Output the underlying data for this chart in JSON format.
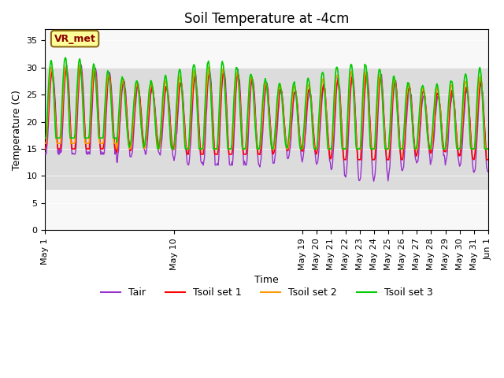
{
  "title": "Soil Temperature at -4cm",
  "xlabel": "Time",
  "ylabel": "Temperature (C)",
  "ylim": [
    0,
    37
  ],
  "yticks": [
    0,
    5,
    10,
    15,
    20,
    25,
    30,
    35
  ],
  "annotation_text": "VR_met",
  "colors": {
    "Tair": "#9933CC",
    "Tsoil1": "#FF0000",
    "Tsoil2": "#FF9900",
    "Tsoil3": "#00CC00"
  },
  "legend_labels": [
    "Tair",
    "Tsoil set 1",
    "Tsoil set 2",
    "Tsoil set 3"
  ],
  "bg_band_low": 7.5,
  "bg_band_high": 30,
  "bg_color": "#DCDCDC"
}
